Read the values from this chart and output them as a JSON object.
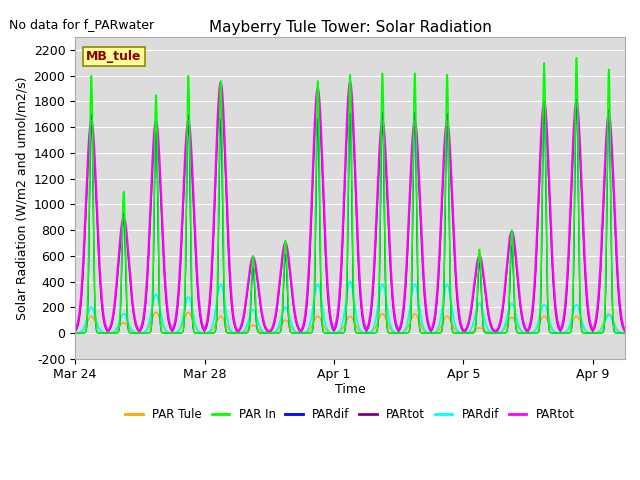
{
  "title": "Mayberry Tule Tower: Solar Radiation",
  "no_data_label": "No data for f_PARwater",
  "ylabel": "Solar Radiation (W/m2 and umol/m2/s)",
  "xlabel": "Time",
  "ylim": [
    -200,
    2300
  ],
  "yticks": [
    -200,
    0,
    200,
    400,
    600,
    800,
    1000,
    1200,
    1400,
    1600,
    1800,
    2000,
    2200
  ],
  "xtick_labels": [
    "Mar 24",
    "Mar 28",
    "Apr 1",
    "Apr 5",
    "Apr 9"
  ],
  "xtick_pos": [
    0,
    4,
    8,
    12,
    16
  ],
  "mb_tule_label": "MB_tule",
  "plot_bg_color": "#DCDCDC",
  "n_days": 17,
  "peaks_green": [
    2000,
    1100,
    1850,
    2000,
    1960,
    600,
    720,
    1960,
    2010,
    2020,
    2020,
    2010,
    650,
    800,
    2100,
    2140,
    2050
  ],
  "peaks_magenta": [
    1650,
    900,
    1650,
    1650,
    1950,
    590,
    700,
    1900,
    1950,
    1650,
    1650,
    1650,
    600,
    790,
    1800,
    1800,
    1700
  ],
  "peaks_orange": [
    130,
    80,
    160,
    160,
    130,
    60,
    100,
    130,
    130,
    150,
    150,
    130,
    40,
    120,
    130,
    130,
    150
  ],
  "peaks_cyan": [
    200,
    150,
    300,
    280,
    380,
    180,
    200,
    380,
    400,
    380,
    380,
    380,
    230,
    230,
    220,
    220,
    140
  ],
  "legend_entries": [
    {
      "label": "PAR Tule",
      "color": "#FFA500"
    },
    {
      "label": "PAR In",
      "color": "#00FF00"
    },
    {
      "label": "PARdif",
      "color": "#0000FF"
    },
    {
      "label": "PARtot",
      "color": "#800080"
    },
    {
      "label": "PARdif",
      "color": "#00FFFF"
    },
    {
      "label": "PARtot",
      "color": "#FF00FF"
    }
  ]
}
